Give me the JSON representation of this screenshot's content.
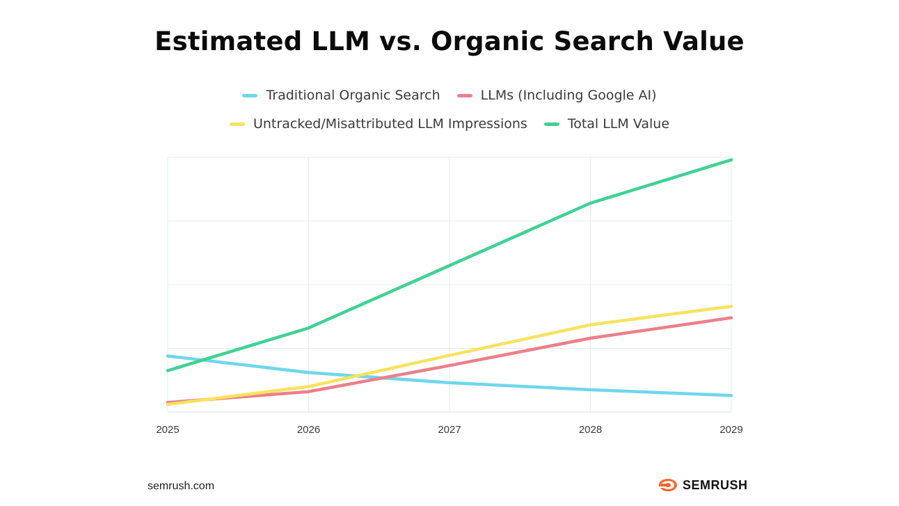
{
  "chart_data": {
    "type": "line",
    "title": "Estimated LLM vs. Organic Search Value",
    "x": [
      "2025",
      "2026",
      "2027",
      "2028",
      "2029"
    ],
    "series": [
      {
        "name": "Traditional Organic Search",
        "color": "#6fd6ec",
        "values": [
          0.88,
          0.62,
          0.46,
          0.35,
          0.26
        ]
      },
      {
        "name": "LLMs (Including Google AI)",
        "color": "#ec7f8a",
        "values": [
          0.15,
          0.32,
          0.73,
          1.16,
          1.48
        ]
      },
      {
        "name": "Untracked/Misattributed LLM Impressions",
        "color": "#f6e35e",
        "values": [
          0.12,
          0.4,
          0.89,
          1.37,
          1.66
        ]
      },
      {
        "name": "Total LLM Value",
        "color": "#3ed293",
        "values": [
          0.65,
          1.32,
          2.3,
          3.28,
          3.96
        ]
      }
    ],
    "ylim": [
      0,
      4
    ],
    "grid": true,
    "legend_position": "top-center"
  },
  "footer": {
    "source": "semrush.com",
    "brand": "SEMRUSH",
    "brand_icon": "semrush-flame-icon",
    "brand_color": "#ff642d"
  }
}
